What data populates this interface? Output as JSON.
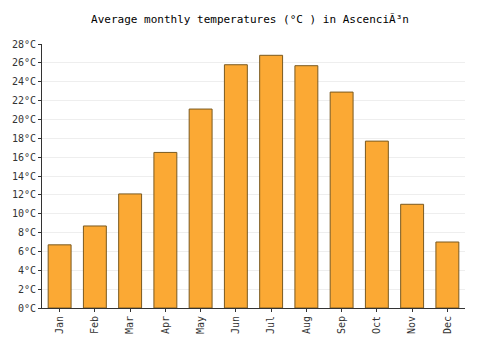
{
  "chart_data": {
    "type": "bar",
    "title": "Average monthly temperatures (°C ) in AscenciÃ³n",
    "categories": [
      "Jan",
      "Feb",
      "Mar",
      "Apr",
      "May",
      "Jun",
      "Jul",
      "Aug",
      "Sep",
      "Oct",
      "Nov",
      "Dec"
    ],
    "values": [
      6.7,
      8.7,
      12.1,
      16.5,
      21.1,
      25.8,
      26.8,
      25.7,
      22.9,
      17.7,
      11.0,
      7.0
    ],
    "color": "#fba934",
    "ylim": [
      0,
      28
    ],
    "yticks": [
      {
        "value": 0,
        "label": "0°C"
      },
      {
        "value": 2,
        "label": "2°C"
      },
      {
        "value": 4,
        "label": "4°C"
      },
      {
        "value": 6,
        "label": "6°C"
      },
      {
        "value": 8,
        "label": "8°C"
      },
      {
        "value": 10,
        "label": "10°C"
      },
      {
        "value": 12,
        "label": "12°C"
      },
      {
        "value": 14,
        "label": "14°C"
      },
      {
        "value": 16,
        "label": "16°C"
      },
      {
        "value": 18,
        "label": "18°C"
      },
      {
        "value": 20,
        "label": "20°C"
      },
      {
        "value": 22,
        "label": "22°C"
      },
      {
        "value": 24,
        "label": "24°C"
      },
      {
        "value": 26,
        "label": "26°C"
      },
      {
        "value": 28,
        "label": "28°C"
      }
    ],
    "grid": true
  }
}
